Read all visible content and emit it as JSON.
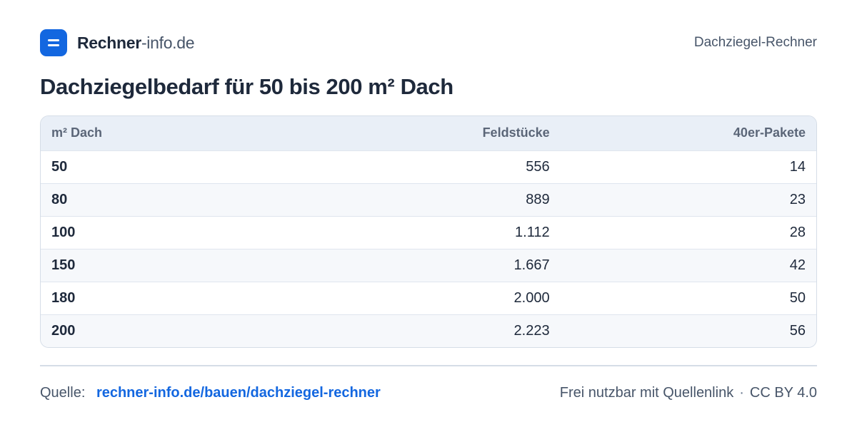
{
  "header": {
    "brand_bold": "Rechner",
    "brand_rest": "-info.de",
    "right_label": "Dachziegel-Rechner"
  },
  "title": "Dachziegelbedarf für 50 bis 200 m² Dach",
  "table": {
    "columns": [
      "m² Dach",
      "Feldstücke",
      "40er-Pakete"
    ],
    "rows": [
      [
        "50",
        "556",
        "14"
      ],
      [
        "80",
        "889",
        "23"
      ],
      [
        "100",
        "1.112",
        "28"
      ],
      [
        "150",
        "1.667",
        "42"
      ],
      [
        "180",
        "2.000",
        "50"
      ],
      [
        "200",
        "2.223",
        "56"
      ]
    ]
  },
  "footer": {
    "source_label": "Quelle:",
    "source_link": "rechner-info.de/bauen/dachziegel-rechner",
    "license_text": "Frei nutzbar mit Quellenlink",
    "separator": "·",
    "license": "CC BY 4.0"
  },
  "colors": {
    "accent": "#1367e0",
    "header_bg": "#e9eff7",
    "text": "#1e293b"
  }
}
